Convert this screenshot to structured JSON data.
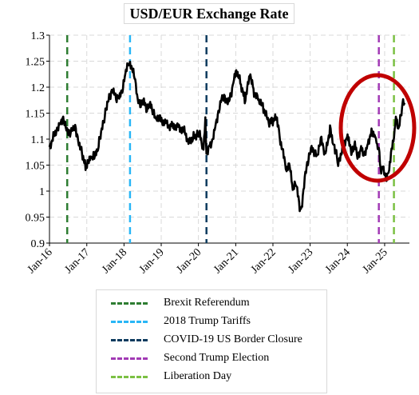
{
  "chart_data": {
    "type": "line",
    "title": "USD/EUR Exchange Rate",
    "xlabel": "",
    "ylabel": "",
    "x_ticks": [
      "Jan-16",
      "Jan-17",
      "Jan-18",
      "Jan-19",
      "Jan-20",
      "Jan-21",
      "Jan-22",
      "Jan-23",
      "Jan-24",
      "Jan-25"
    ],
    "y_ticks": [
      "0.9",
      "0.95",
      "1",
      "1.05",
      "1.1",
      "1.15",
      "1.2",
      "1.25",
      "1.3"
    ],
    "xlim": [
      "2016-01-01",
      "2025-09-01"
    ],
    "ylim": [
      0.9,
      1.3
    ],
    "grid": true,
    "legend_position": "bottom",
    "series": [
      {
        "color": "#000000",
        "points": [
          [
            "2016-01-01",
            1.085
          ],
          [
            "2016-02-15",
            1.11
          ],
          [
            "2016-03-15",
            1.12
          ],
          [
            "2016-04-15",
            1.135
          ],
          [
            "2016-05-15",
            1.14
          ],
          [
            "2016-06-15",
            1.125
          ],
          [
            "2016-07-15",
            1.11
          ],
          [
            "2016-08-15",
            1.125
          ],
          [
            "2016-09-15",
            1.12
          ],
          [
            "2016-10-15",
            1.095
          ],
          [
            "2016-11-15",
            1.075
          ],
          [
            "2016-12-20",
            1.045
          ],
          [
            "2017-01-15",
            1.06
          ],
          [
            "2017-02-15",
            1.065
          ],
          [
            "2017-03-15",
            1.07
          ],
          [
            "2017-04-15",
            1.075
          ],
          [
            "2017-05-15",
            1.11
          ],
          [
            "2017-06-15",
            1.13
          ],
          [
            "2017-07-15",
            1.165
          ],
          [
            "2017-08-15",
            1.18
          ],
          [
            "2017-09-15",
            1.195
          ],
          [
            "2017-10-15",
            1.175
          ],
          [
            "2017-11-15",
            1.18
          ],
          [
            "2017-12-15",
            1.19
          ],
          [
            "2018-01-15",
            1.225
          ],
          [
            "2018-02-15",
            1.245
          ],
          [
            "2018-03-15",
            1.235
          ],
          [
            "2018-04-15",
            1.22
          ],
          [
            "2018-05-15",
            1.17
          ],
          [
            "2018-06-15",
            1.165
          ],
          [
            "2018-07-15",
            1.17
          ],
          [
            "2018-08-15",
            1.155
          ],
          [
            "2018-09-15",
            1.165
          ],
          [
            "2018-10-15",
            1.15
          ],
          [
            "2018-11-15",
            1.135
          ],
          [
            "2018-12-15",
            1.14
          ],
          [
            "2019-02-15",
            1.13
          ],
          [
            "2019-04-15",
            1.125
          ],
          [
            "2019-06-15",
            1.125
          ],
          [
            "2019-08-15",
            1.115
          ],
          [
            "2019-10-01",
            1.095
          ],
          [
            "2019-11-15",
            1.105
          ],
          [
            "2019-12-15",
            1.11
          ],
          [
            "2020-01-15",
            1.11
          ],
          [
            "2020-02-20",
            1.08
          ],
          [
            "2020-03-09",
            1.14
          ],
          [
            "2020-03-20",
            1.07
          ],
          [
            "2020-04-15",
            1.09
          ],
          [
            "2020-05-15",
            1.095
          ],
          [
            "2020-06-15",
            1.13
          ],
          [
            "2020-07-15",
            1.15
          ],
          [
            "2020-08-15",
            1.185
          ],
          [
            "2020-09-15",
            1.18
          ],
          [
            "2020-10-15",
            1.175
          ],
          [
            "2020-11-15",
            1.185
          ],
          [
            "2020-12-15",
            1.22
          ],
          [
            "2021-01-06",
            1.235
          ],
          [
            "2021-02-15",
            1.21
          ],
          [
            "2021-03-31",
            1.175
          ],
          [
            "2021-05-25",
            1.225
          ],
          [
            "2021-06-30",
            1.19
          ],
          [
            "2021-08-15",
            1.175
          ],
          [
            "2021-09-30",
            1.16
          ],
          [
            "2021-11-20",
            1.13
          ],
          [
            "2021-12-31",
            1.135
          ],
          [
            "2022-02-10",
            1.14
          ],
          [
            "2022-03-15",
            1.095
          ],
          [
            "2022-04-30",
            1.055
          ],
          [
            "2022-05-15",
            1.04
          ],
          [
            "2022-06-15",
            1.05
          ],
          [
            "2022-07-14",
            1.0
          ],
          [
            "2022-08-15",
            1.015
          ],
          [
            "2022-09-27",
            0.96
          ],
          [
            "2022-10-15",
            0.975
          ],
          [
            "2022-11-15",
            1.03
          ],
          [
            "2022-12-15",
            1.06
          ],
          [
            "2023-01-15",
            1.08
          ],
          [
            "2023-02-15",
            1.07
          ],
          [
            "2023-03-15",
            1.065
          ],
          [
            "2023-04-15",
            1.1
          ],
          [
            "2023-05-31",
            1.07
          ],
          [
            "2023-07-15",
            1.12
          ],
          [
            "2023-08-15",
            1.09
          ],
          [
            "2023-09-15",
            1.07
          ],
          [
            "2023-10-03",
            1.05
          ],
          [
            "2023-11-15",
            1.085
          ],
          [
            "2023-12-28",
            1.105
          ],
          [
            "2024-01-15",
            1.095
          ],
          [
            "2024-02-15",
            1.075
          ],
          [
            "2024-03-15",
            1.09
          ],
          [
            "2024-04-16",
            1.065
          ],
          [
            "2024-05-15",
            1.085
          ],
          [
            "2024-06-15",
            1.07
          ],
          [
            "2024-07-15",
            1.09
          ],
          [
            "2024-08-25",
            1.115
          ],
          [
            "2024-09-30",
            1.11
          ],
          [
            "2024-10-20",
            1.085
          ],
          [
            "2024-11-05",
            1.09
          ],
          [
            "2024-11-22",
            1.04
          ],
          [
            "2024-12-15",
            1.05
          ],
          [
            "2025-01-13",
            1.025
          ],
          [
            "2025-02-15",
            1.045
          ],
          [
            "2025-03-10",
            1.085
          ],
          [
            "2025-04-03",
            1.105
          ],
          [
            "2025-04-21",
            1.15
          ],
          [
            "2025-05-15",
            1.12
          ],
          [
            "2025-06-15",
            1.155
          ],
          [
            "2025-07-01",
            1.175
          ],
          [
            "2025-07-15",
            1.17
          ]
        ]
      }
    ],
    "events": [
      {
        "name": "Brexit Referendum",
        "date": "2016-06-23",
        "color": "#2e7d32"
      },
      {
        "name": "2018 Trump Tariffs",
        "date": "2018-03-01",
        "color": "#29b6f6"
      },
      {
        "name": "COVID-19 US Border Closure",
        "date": "2020-03-20",
        "color": "#0d3b5e"
      },
      {
        "name": "Second Trump Election",
        "date": "2024-11-05",
        "color": "#a23ab5"
      },
      {
        "name": "Liberation Day",
        "date": "2025-04-02",
        "color": "#7bc043"
      }
    ],
    "highlight": {
      "shape": "ellipse",
      "color": "#c00000",
      "around": "2024-2025 period"
    }
  }
}
